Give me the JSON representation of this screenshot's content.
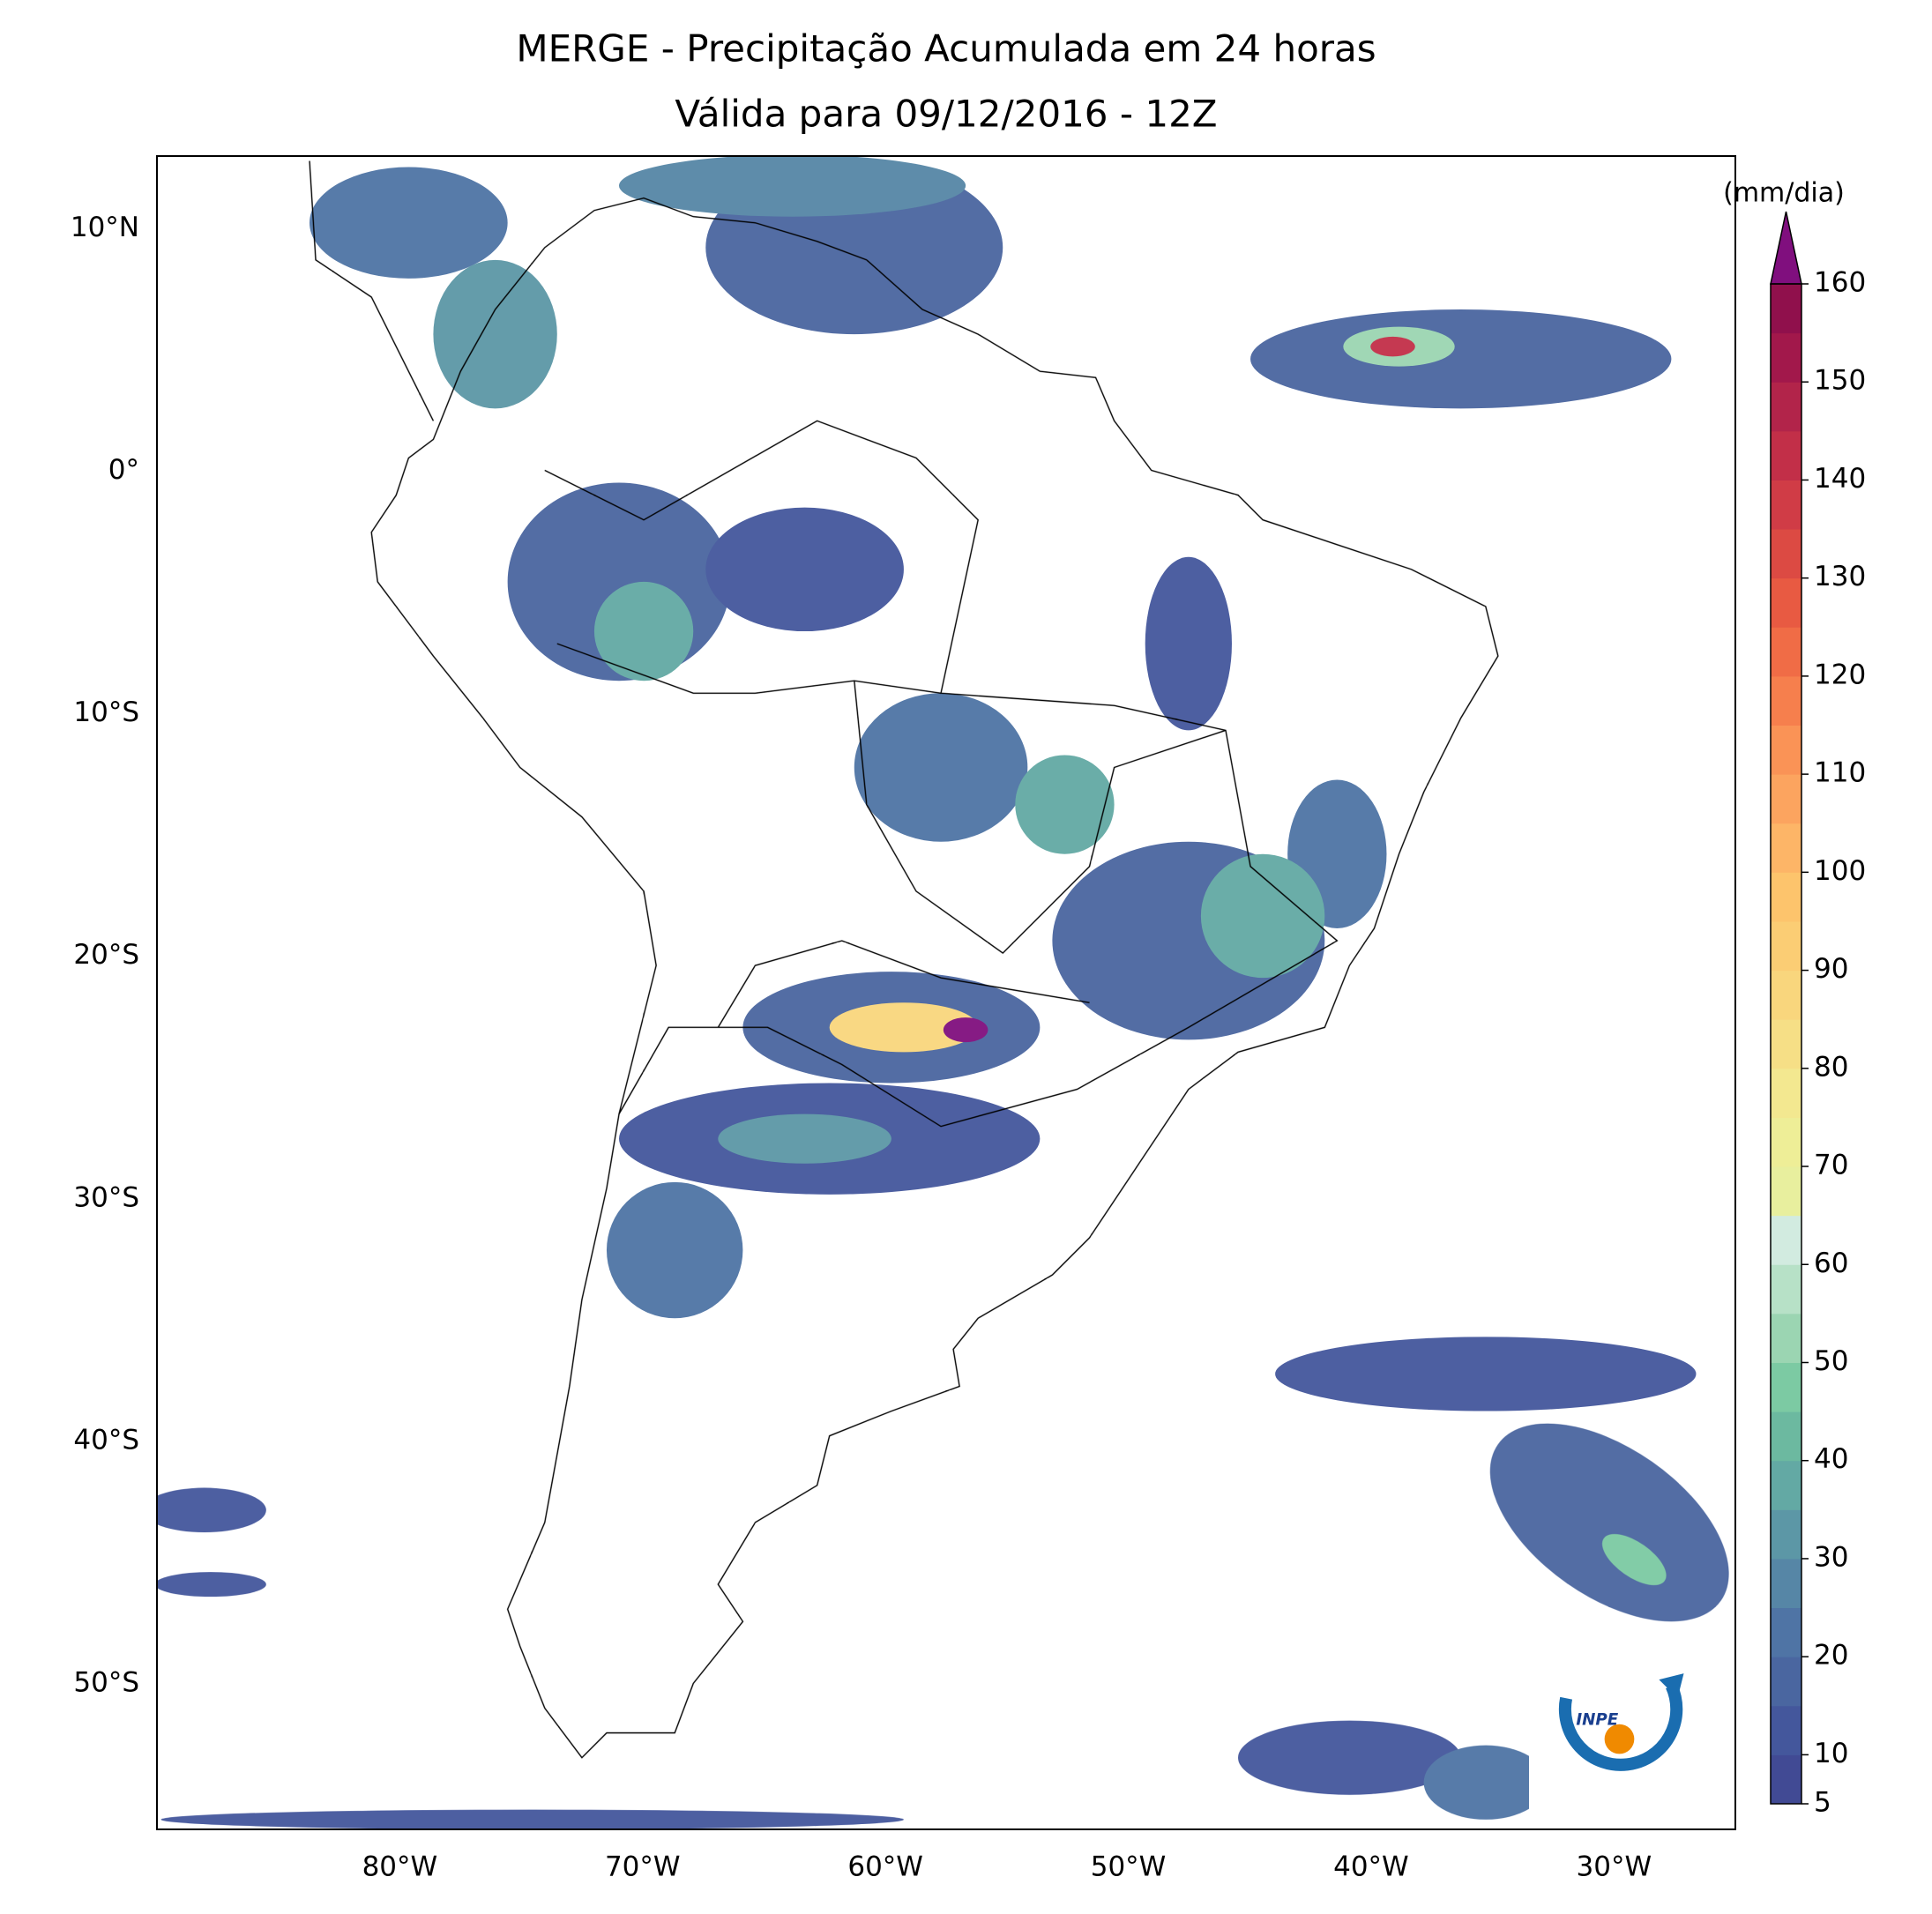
{
  "chart_data": {
    "type": "map",
    "title": "MERGE - Precipitação Acumulada em 24 horas",
    "subtitle": "Válida para 09/12/2016 - 12Z",
    "xlim": [
      -90,
      -25
    ],
    "ylim": [
      -56,
      13
    ],
    "xticks": [
      {
        "value": -80,
        "label": "80°W"
      },
      {
        "value": -70,
        "label": "70°W"
      },
      {
        "value": -60,
        "label": "60°W"
      },
      {
        "value": -50,
        "label": "50°W"
      },
      {
        "value": -40,
        "label": "40°W"
      },
      {
        "value": -30,
        "label": "30°W"
      }
    ],
    "yticks": [
      {
        "value": 10,
        "label": "10°N"
      },
      {
        "value": 0,
        "label": "0°"
      },
      {
        "value": -10,
        "label": "10°S"
      },
      {
        "value": -20,
        "label": "20°S"
      },
      {
        "value": -30,
        "label": "30°S"
      },
      {
        "value": -40,
        "label": "40°S"
      },
      {
        "value": -50,
        "label": "50°S"
      }
    ],
    "colorbar": {
      "label": "(mm/dia)",
      "lim": [
        5,
        160
      ],
      "ticks": [
        5,
        10,
        20,
        30,
        40,
        50,
        60,
        70,
        80,
        90,
        100,
        110,
        120,
        130,
        140,
        150,
        160
      ],
      "colors": [
        "#414a94",
        "#44579c",
        "#4a66a0",
        "#4f74a5",
        "#5686a6",
        "#5c97a6",
        "#63a9a4",
        "#6cb9a0",
        "#7ccaa3",
        "#9bd5b2",
        "#b7e1c7",
        "#d2ebe0",
        "#e8ef9e",
        "#eeee97",
        "#f3e890",
        "#f6df86",
        "#f9d67d",
        "#fbcd74",
        "#fdc46c",
        "#fdb567",
        "#fca45f",
        "#fa9356",
        "#f67f4d",
        "#f06c46",
        "#e85a42",
        "#dc4a43",
        "#d03c46",
        "#c22f48",
        "#b2244a",
        "#a2184b",
        "#90104c"
      ],
      "extend_color": "#800f7e"
    }
  }
}
